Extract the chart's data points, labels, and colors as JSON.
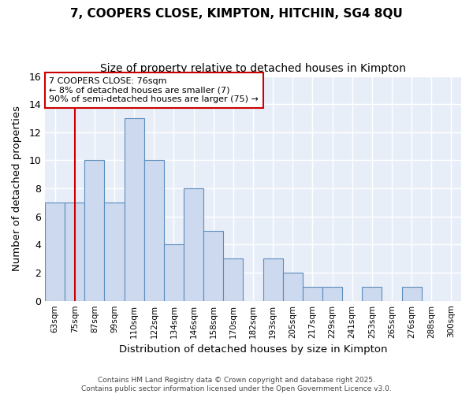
{
  "title1": "7, COOPERS CLOSE, KIMPTON, HITCHIN, SG4 8QU",
  "title2": "Size of property relative to detached houses in Kimpton",
  "xlabel": "Distribution of detached houses by size in Kimpton",
  "ylabel": "Number of detached properties",
  "categories": [
    "63sqm",
    "75sqm",
    "87sqm",
    "99sqm",
    "110sqm",
    "122sqm",
    "134sqm",
    "146sqm",
    "158sqm",
    "170sqm",
    "182sqm",
    "193sqm",
    "205sqm",
    "217sqm",
    "229sqm",
    "241sqm",
    "253sqm",
    "265sqm",
    "276sqm",
    "288sqm",
    "300sqm"
  ],
  "values": [
    7,
    7,
    10,
    7,
    13,
    10,
    4,
    8,
    5,
    3,
    0,
    3,
    2,
    1,
    1,
    0,
    1,
    0,
    1,
    0,
    0
  ],
  "bar_color": "#ccd9ee",
  "bar_edge_color": "#5b8dbe",
  "background_color": "#e8eef8",
  "grid_color": "#ffffff",
  "vline_color": "#cc0000",
  "vline_x": 1,
  "annotation_text": "7 COOPERS CLOSE: 76sqm\n← 8% of detached houses are smaller (7)\n90% of semi-detached houses are larger (75) →",
  "annotation_box_color": "#ffffff",
  "annotation_box_edgecolor": "#cc0000",
  "footer_text": "Contains HM Land Registry data © Crown copyright and database right 2025.\nContains public sector information licensed under the Open Government Licence v3.0.",
  "ylim": [
    0,
    16
  ],
  "yticks": [
    0,
    2,
    4,
    6,
    8,
    10,
    12,
    14,
    16
  ]
}
